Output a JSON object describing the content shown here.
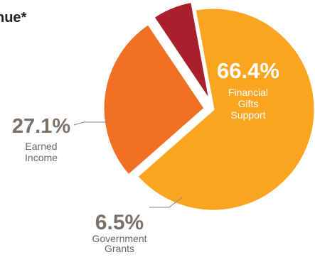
{
  "chart_data": {
    "type": "pie",
    "title": "nue*",
    "slices": [
      {
        "name": "Financial Gifts Support",
        "label_lines": [
          "Financial",
          "Gifts",
          "Support"
        ],
        "percent_text": "66.4%",
        "value": 66.4,
        "color": "#F9A51F",
        "label_color": "#ffffff",
        "pct_color": "#ffffff",
        "exploded": false
      },
      {
        "name": "Government Grants",
        "label_lines": [
          "Government",
          "Grants"
        ],
        "percent_text": "6.5%",
        "value": 6.5,
        "color": "#A81F2D",
        "label_color": "#6d6560",
        "pct_color": "#7a7068",
        "exploded": true
      },
      {
        "name": "Earned Income",
        "label_lines": [
          "Earned",
          "Income"
        ],
        "percent_text": "27.1%",
        "value": 27.1,
        "color": "#F07124",
        "label_color": "#6d6560",
        "pct_color": "#7a7068",
        "exploded": true
      }
    ],
    "leader_color": "#8a8580"
  }
}
